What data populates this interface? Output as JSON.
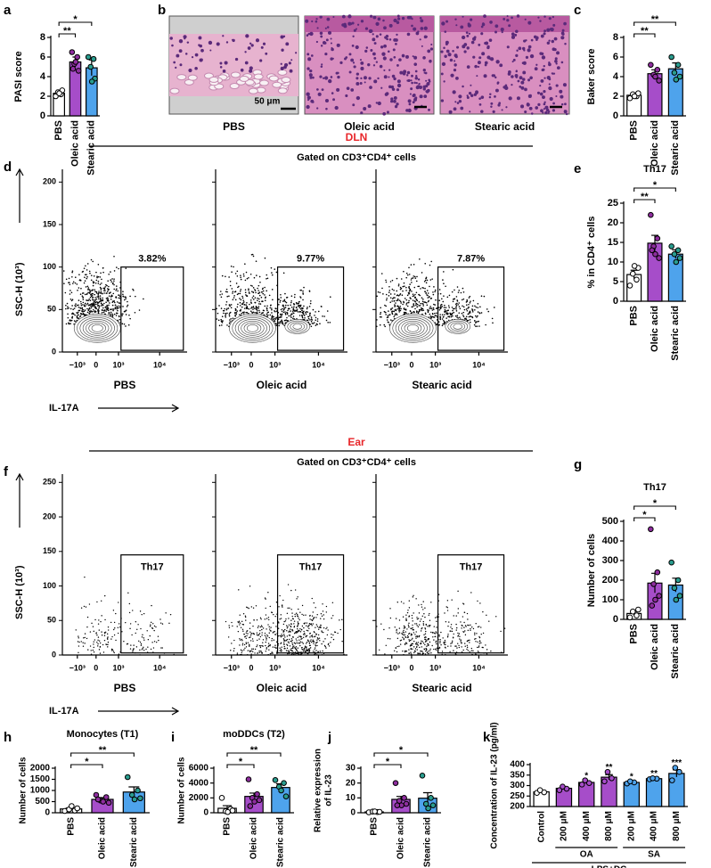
{
  "chart_data": [
    {
      "type": "bar",
      "panel": "a",
      "ylabel": [
        "PASI score"
      ],
      "categories": [
        "PBS",
        "Oleic acid",
        "Stearic acid"
      ],
      "values": [
        2.3,
        5.5,
        4.9
      ],
      "errors": [
        0.3,
        0.5,
        0.8
      ],
      "points": [
        [
          2.0,
          2.2,
          2.4,
          2.6,
          2.3
        ],
        [
          6.5,
          6.0,
          5.3,
          4.6,
          5.5,
          4.8
        ],
        [
          6.0,
          5.8,
          5.0,
          3.8,
          3.5
        ]
      ],
      "colors": [
        "#ffffff",
        "#a64dc9",
        "#4ea3ec"
      ],
      "point_colors": [
        "#ffffff",
        "#8e2d9e",
        "#2a9d8f"
      ],
      "ylim": [
        0,
        8
      ],
      "yticks": [
        0,
        2,
        4,
        6,
        8
      ],
      "significance": [
        null,
        "**",
        "*"
      ],
      "significance_style": "bracket"
    },
    {
      "type": "bar",
      "panel": "c",
      "ylabel": [
        "Baker score"
      ],
      "categories": [
        "PBS",
        "Oleic acid",
        "Stearic acid"
      ],
      "values": [
        2.1,
        4.3,
        4.8
      ],
      "errors": [
        0.2,
        0.4,
        0.6
      ],
      "points": [
        [
          1.8,
          2.0,
          2.2,
          2.3,
          2.0
        ],
        [
          5.2,
          4.7,
          4.2,
          3.6,
          4.0
        ],
        [
          6.0,
          5.2,
          4.4,
          4.0,
          3.7
        ]
      ],
      "colors": [
        "#ffffff",
        "#a64dc9",
        "#4ea3ec"
      ],
      "point_colors": [
        "#ffffff",
        "#8e2d9e",
        "#2a9d8f"
      ],
      "ylim": [
        0,
        8
      ],
      "yticks": [
        0,
        2,
        4,
        6,
        8
      ],
      "significance": [
        null,
        "**",
        "**"
      ],
      "significance_style": "bracket"
    },
    {
      "type": "bar",
      "panel": "e",
      "title": "Th17",
      "ylabel": [
        "% in CD4⁺ cells"
      ],
      "categories": [
        "PBS",
        "Oleic acid",
        "Stearic acid"
      ],
      "values": [
        6.8,
        14.8,
        12
      ],
      "errors": [
        1.1,
        2.0,
        1.1
      ],
      "points": [
        [
          4,
          5.5,
          7,
          8.5,
          9
        ],
        [
          22,
          16,
          14,
          11,
          12,
          13
        ],
        [
          14,
          13,
          12,
          11,
          10
        ]
      ],
      "colors": [
        "#ffffff",
        "#a64dc9",
        "#4ea3ec"
      ],
      "point_colors": [
        "#ffffff",
        "#8e2d9e",
        "#2a9d8f"
      ],
      "ylim": [
        0,
        25
      ],
      "yticks": [
        0,
        5,
        10,
        15,
        20,
        25
      ],
      "significance": [
        null,
        "**",
        "*"
      ],
      "significance_style": "bracket"
    },
    {
      "type": "bar",
      "panel": "g",
      "title": "Th17",
      "ylabel": [
        "Number of cells"
      ],
      "categories": [
        "PBS",
        "Oleic acid",
        "Stearic acid"
      ],
      "values": [
        30,
        185,
        175
      ],
      "errors": [
        10,
        50,
        35
      ],
      "points": [
        [
          10,
          20,
          40,
          50
        ],
        [
          460,
          240,
          180,
          120,
          100,
          70
        ],
        [
          290,
          200,
          160,
          120,
          100
        ]
      ],
      "colors": [
        "#ffffff",
        "#a64dc9",
        "#4ea3ec"
      ],
      "point_colors": [
        "#ffffff",
        "#8e2d9e",
        "#2a9d8f"
      ],
      "ylim": [
        0,
        500
      ],
      "yticks": [
        0,
        100,
        200,
        300,
        400,
        500
      ],
      "significance": [
        null,
        "*",
        "*"
      ],
      "significance_style": "bracket"
    },
    {
      "type": "bar",
      "panel": "h",
      "title": "Monocytes (T1)",
      "ylabel": [
        "Number of cells"
      ],
      "categories": [
        "PBS",
        "Oleic acid",
        "Stearic acid"
      ],
      "values": [
        170,
        600,
        930
      ],
      "errors": [
        40,
        80,
        230
      ],
      "points": [
        [
          80,
          100,
          150,
          200,
          300
        ],
        [
          800,
          700,
          550,
          450,
          500,
          600
        ],
        [
          1600,
          1000,
          800,
          650,
          600
        ]
      ],
      "colors": [
        "#ffffff",
        "#a64dc9",
        "#4ea3ec"
      ],
      "point_colors": [
        "#ffffff",
        "#8e2d9e",
        "#2a9d8f"
      ],
      "ylim": [
        0,
        2000
      ],
      "yticks": [
        0,
        500,
        1000,
        1500,
        2000
      ],
      "significance": [
        null,
        "*",
        "**"
      ],
      "significance_style": "bracket"
    },
    {
      "type": "bar",
      "panel": "i",
      "title": "moDDCs (T2)",
      "ylabel": [
        "Number of cells"
      ],
      "categories": [
        "PBS",
        "Oleic acid",
        "Stearic acid"
      ],
      "values": [
        600,
        2200,
        3400
      ],
      "errors": [
        350,
        450,
        500
      ],
      "points": [
        [
          2000,
          500,
          200,
          300,
          100
        ],
        [
          4500,
          2500,
          2000,
          1700,
          1500,
          900
        ],
        [
          4400,
          4000,
          3500,
          2200,
          3000
        ]
      ],
      "colors": [
        "#ffffff",
        "#a64dc9",
        "#4ea3ec"
      ],
      "point_colors": [
        "#ffffff",
        "#8e2d9e",
        "#2a9d8f"
      ],
      "ylim": [
        0,
        6000
      ],
      "yticks": [
        0,
        2000,
        4000,
        6000
      ],
      "significance": [
        null,
        "*",
        "**"
      ],
      "significance_style": "bracket"
    },
    {
      "type": "bar",
      "panel": "j",
      "ylabel": [
        "Relative expression",
        "of IL-23"
      ],
      "categories": [
        "PBS",
        "Oleic acid",
        "Stearic acid"
      ],
      "values": [
        0.6,
        9,
        9.8
      ],
      "errors": [
        0.2,
        2,
        3.7
      ],
      "points": [
        [
          0.3,
          0.5,
          0.8,
          0.6,
          0.9
        ],
        [
          20,
          10,
          8,
          6,
          5,
          5
        ],
        [
          25,
          10,
          6,
          5,
          3
        ]
      ],
      "colors": [
        "#ffffff",
        "#a64dc9",
        "#4ea3ec"
      ],
      "point_colors": [
        "#ffffff",
        "#8e2d9e",
        "#2a9d8f"
      ],
      "ylim": [
        0,
        30
      ],
      "yticks": [
        0,
        10,
        20,
        30
      ],
      "significance": [
        null,
        "*",
        "*"
      ],
      "significance_style": "bracket"
    },
    {
      "type": "bar",
      "panel": "k",
      "ylabel": [
        "Concentration of IL-23 (pg/ml)"
      ],
      "categories": [
        "Control",
        "200 μM",
        "400 μM",
        "800 μM",
        "200 μM",
        "400 μM",
        "800 μM"
      ],
      "values": [
        270,
        287,
        315,
        340,
        315,
        333,
        358
      ],
      "errors": [
        5,
        5,
        6,
        12,
        3,
        2,
        17
      ],
      "points": [
        [
          265,
          268,
          278
        ],
        [
          278,
          285,
          295
        ],
        [
          305,
          312,
          325
        ],
        [
          320,
          335,
          365
        ],
        [
          310,
          315,
          320
        ],
        [
          330,
          333,
          335
        ],
        [
          325,
          365,
          385
        ]
      ],
      "colors": [
        "#ffffff",
        "#a64dc9",
        "#a64dc9",
        "#a64dc9",
        "#4ea3ec",
        "#4ea3ec",
        "#4ea3ec"
      ],
      "point_colors": [
        "#ffffff",
        "#a64dc9",
        "#a64dc9",
        "#a64dc9",
        "#4ea3ec",
        "#4ea3ec",
        "#4ea3ec"
      ],
      "ylim": [
        200,
        400
      ],
      "yticks": [
        200,
        250,
        300,
        350,
        400
      ],
      "significance": [
        null,
        null,
        "*",
        "**",
        "*",
        "**",
        "***"
      ],
      "significance_style": "above",
      "groups": [
        {
          "label": "OA",
          "from": 1,
          "to": 3
        },
        {
          "label": "SA",
          "from": 4,
          "to": 6
        }
      ],
      "group_label": "LPS+DC"
    }
  ],
  "histology": {
    "panel": "b",
    "samples": [
      "PBS",
      "Oleic acid",
      "Stearic acid"
    ],
    "scale_bar": "50 μm"
  },
  "flow": [
    {
      "panel": "d",
      "region": "DLN",
      "gate_title": "Gated on CD3⁺CD4⁺ cells",
      "ylabel": "SSC-H (10³)",
      "xlabel": "IL-17A",
      "ylim": [
        0,
        215
      ],
      "yticks": [
        0,
        50,
        100,
        150,
        200
      ],
      "xtick_labels": [
        "−10³",
        "0",
        "10³",
        "10⁴"
      ],
      "samples": [
        {
          "name": "PBS",
          "gate_label": "3.82%"
        },
        {
          "name": "Oleic acid",
          "gate_label": "9.77%"
        },
        {
          "name": "Stearic acid",
          "gate_label": "7.87%"
        }
      ]
    },
    {
      "panel": "f",
      "region": "Ear",
      "gate_title": "Gated on CD3⁺CD4⁺ cells",
      "ylabel": "SSC-H (10³)",
      "xlabel": "IL-17A",
      "ylim": [
        0,
        262
      ],
      "yticks": [
        0,
        50,
        100,
        150,
        200,
        250
      ],
      "xtick_labels": [
        "−10³",
        "0",
        "10³",
        "10⁴"
      ],
      "samples": [
        {
          "name": "PBS",
          "gate_label": "Th17"
        },
        {
          "name": "Oleic acid",
          "gate_label": "Th17"
        },
        {
          "name": "Stearic  acid",
          "gate_label": "Th17"
        }
      ]
    }
  ]
}
